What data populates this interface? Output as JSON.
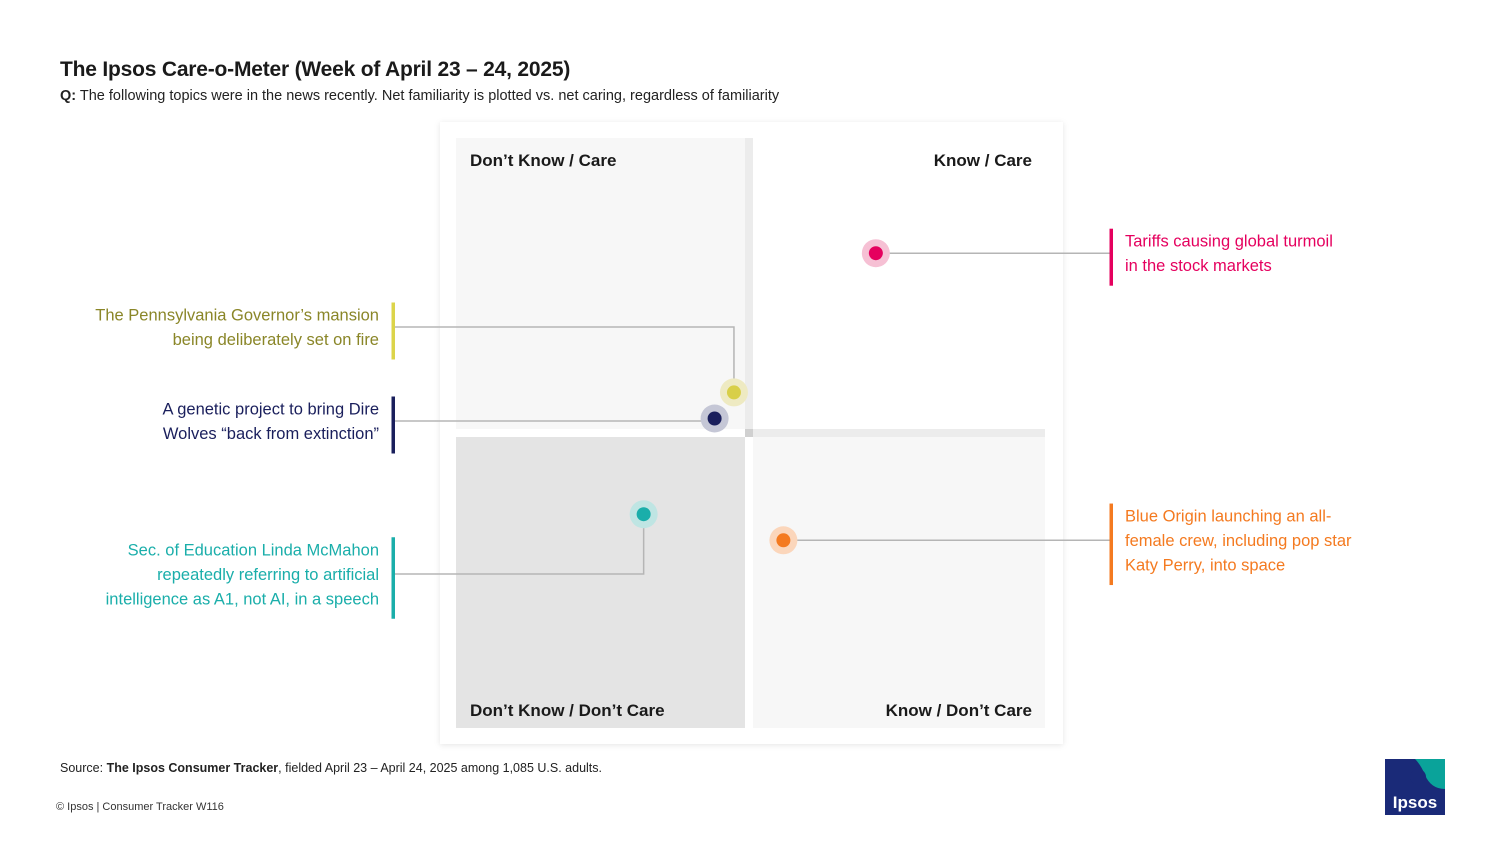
{
  "title": "The Ipsos Care-o-Meter (Week of April 23 – 24, 2025)",
  "question": {
    "prefix": "Q:",
    "text": "The following topics were in the news recently. Net familiarity is plotted vs. net caring, regardless of familiarity"
  },
  "chart_data": {
    "type": "scatter",
    "xlabel": "",
    "ylabel": "",
    "quadrants": {
      "top_left": "Don’t Know / Care",
      "top_right": "Know / Care",
      "bottom_left": "Don’t Know / Don’t Care",
      "bottom_right": "Know / Don’t Care"
    },
    "points": [
      {
        "id": "tariffs",
        "x": 0.59,
        "y": 0.62,
        "color": "#e5005e",
        "halo": "#f6c0d4",
        "label_side": "right",
        "label": [
          "Tariffs causing global turmoil",
          "in the stock markets"
        ]
      },
      {
        "id": "pa-governor",
        "x": -0.07,
        "y": 0.14,
        "color": "#d8cf48",
        "halo": "#eeeac2",
        "text_color": "#8a8628",
        "bar_color": "#dcd44a",
        "label_side": "left",
        "label": [
          "The Pennsylvania Governor’s mansion",
          "being deliberately set on fire"
        ]
      },
      {
        "id": "dire-wolves",
        "x": -0.16,
        "y": 0.05,
        "color": "#1a1f5c",
        "halo": "#c5c7d6",
        "label_side": "left",
        "label": [
          "A genetic project to bring Dire",
          "Wolves “back from extinction”"
        ]
      },
      {
        "id": "mcmahon",
        "x": -0.49,
        "y": -0.28,
        "color": "#1aaeaa",
        "halo": "#bfe5e3",
        "label_side": "left",
        "label": [
          "Sec. of Education Linda McMahon",
          "repeatedly referring to artificial",
          "intelligence as A1, not AI, in a speech"
        ]
      },
      {
        "id": "blue-origin",
        "x": 0.16,
        "y": -0.37,
        "color": "#f47a20",
        "halo": "#fbd6bb",
        "label_side": "right",
        "label": [
          "Blue Origin launching an all-",
          "female crew, including pop star",
          "Katy Perry, into space"
        ]
      }
    ]
  },
  "source": {
    "prefix": "Source:",
    "name": "The Ipsos Consumer Tracker",
    "rest": ", fielded April 23 – April 24, 2025 among 1,085 U.S. adults."
  },
  "footer": "© Ipsos | Consumer Tracker W116",
  "logo": {
    "text": "Ipsos",
    "bg": "#1a2a78",
    "accent": "#0aa39a"
  }
}
